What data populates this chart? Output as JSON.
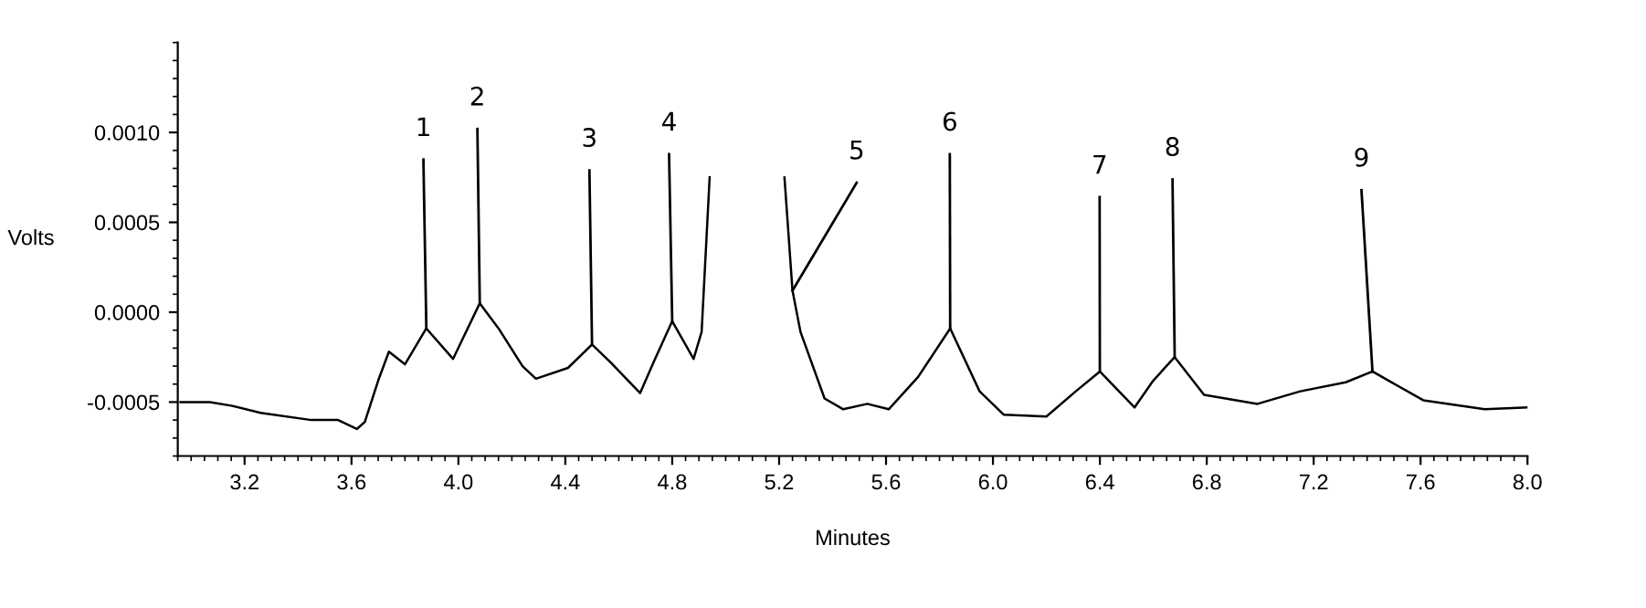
{
  "chart_data": {
    "type": "line",
    "xlabel": "Minutes",
    "ylabel": "Volts",
    "x": [
      2.96,
      3.07,
      3.15,
      3.26,
      3.45,
      3.55,
      3.62,
      3.65,
      3.7,
      3.74,
      3.8,
      3.88,
      3.98,
      4.08,
      4.15,
      4.24,
      4.29,
      4.41,
      4.5,
      4.57,
      4.68,
      4.73,
      4.8,
      4.88,
      4.91,
      4.94,
      5.05,
      5.22,
      5.25,
      5.28,
      5.37,
      5.44,
      5.53,
      5.61,
      5.72,
      5.84,
      5.95,
      6.04,
      6.2,
      6.31,
      6.4,
      6.53,
      6.6,
      6.68,
      6.79,
      6.99,
      7.15,
      7.32,
      7.42,
      7.61,
      7.84,
      8.0
    ],
    "series": [
      {
        "color": "#000000",
        "values": [
          -0.0005,
          -0.0005,
          -0.00052,
          -0.00056,
          -0.0006,
          -0.0006,
          -0.00065,
          -0.00061,
          -0.00038,
          -0.00022,
          -0.00029,
          -9e-05,
          -0.00026,
          5e-05,
          -9e-05,
          -0.0003,
          -0.00037,
          -0.00031,
          -0.00018,
          -0.00028,
          -0.00045,
          -0.00028,
          -5e-05,
          -0.00026,
          -0.00011,
          0.00075,
          null,
          0.00075,
          0.00012,
          -0.00011,
          -0.00048,
          -0.00054,
          -0.00051,
          -0.00054,
          -0.00036,
          -9e-05,
          -0.00044,
          -0.00057,
          -0.00058,
          -0.00044,
          -0.00033,
          -0.00053,
          -0.00038,
          -0.00025,
          -0.00046,
          -0.00051,
          -0.00044,
          -0.00039,
          -0.00033,
          -0.00049,
          -0.00054,
          -0.00053
        ]
      }
    ],
    "xlim": [
      2.95,
      8.0
    ],
    "xticks": [
      {
        "value": 3.2,
        "label": "3.2"
      },
      {
        "value": 3.6,
        "label": "3.6"
      },
      {
        "value": 4.0,
        "label": "4.0"
      },
      {
        "value": 4.4,
        "label": "4.4"
      },
      {
        "value": 4.8,
        "label": "4.8"
      },
      {
        "value": 5.2,
        "label": "5.2"
      },
      {
        "value": 5.6,
        "label": "5.6"
      },
      {
        "value": 6.0,
        "label": "6.0"
      },
      {
        "value": 6.4,
        "label": "6.4"
      },
      {
        "value": 6.8,
        "label": "6.8"
      },
      {
        "value": 7.2,
        "label": "7.2"
      },
      {
        "value": 7.6,
        "label": "7.6"
      },
      {
        "value": 8.0,
        "label": "8.0"
      }
    ],
    "ylim": [
      -0.0008,
      0.0015
    ],
    "yticks": [
      {
        "value": -0.0005,
        "label": "-0.0005"
      },
      {
        "value": 0.0,
        "label": "0.0000"
      },
      {
        "value": 0.0005,
        "label": "0.0005"
      },
      {
        "value": 0.001,
        "label": "0.0010"
      }
    ],
    "annotations": [
      {
        "text": "1",
        "x": 3.88,
        "y": -9e-05
      },
      {
        "text": "2",
        "x": 4.08,
        "y": 5e-05
      },
      {
        "text": "3",
        "x": 4.5,
        "y": -0.00018
      },
      {
        "text": "4",
        "x": 4.8,
        "y": -5e-05
      },
      {
        "text": "5",
        "x": 5.25,
        "y": 0.00012
      },
      {
        "text": "6",
        "x": 5.84,
        "y": -9e-05
      },
      {
        "text": "7",
        "x": 6.4,
        "y": -0.00033
      },
      {
        "text": "8",
        "x": 6.68,
        "y": -0.00025
      },
      {
        "text": "9",
        "x": 7.42,
        "y": -0.00033
      }
    ],
    "grid": false,
    "legend": false,
    "marker": "none",
    "line_style": "solid"
  }
}
